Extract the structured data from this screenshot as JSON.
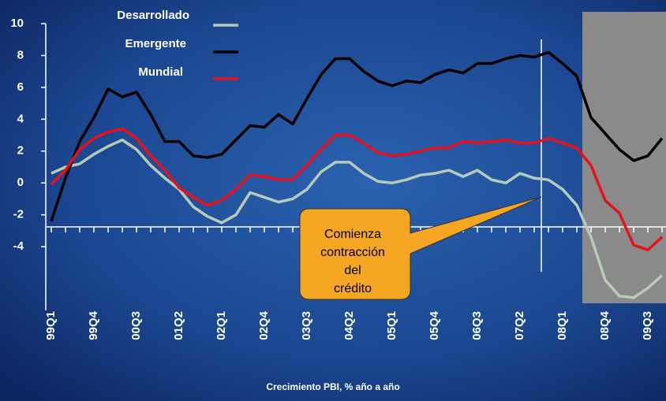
{
  "chart_data": {
    "type": "line",
    "x_label": "Crecimiento PBI, % año a año",
    "categories": [
      "99Q1",
      null,
      null,
      "99Q4",
      null,
      null,
      "00Q3",
      null,
      null,
      "01Q2",
      null,
      null,
      "02Q1",
      null,
      null,
      "02Q4",
      null,
      null,
      "03Q3",
      null,
      null,
      "04Q2",
      null,
      null,
      "05Q1",
      null,
      null,
      "05Q4",
      null,
      null,
      "06Q3",
      null,
      null,
      "07Q2",
      null,
      null,
      "08Q1",
      null,
      null,
      "08Q4",
      null,
      null,
      "09Q3",
      null
    ],
    "series": [
      {
        "name": "Desarrollado",
        "color": "#b8cbb8",
        "values": [
          0.6,
          1.0,
          1.2,
          1.8,
          2.3,
          2.7,
          2.1,
          1.1,
          0.3,
          -0.4,
          -1.5,
          -2.1,
          -2.5,
          -2.0,
          -0.6,
          -0.9,
          -1.2,
          -1.0,
          -0.4,
          0.7,
          1.3,
          1.3,
          0.6,
          0.1,
          0.0,
          0.2,
          0.5,
          0.6,
          0.8,
          0.4,
          0.8,
          0.2,
          0.0,
          0.6,
          0.3,
          0.2,
          -0.4,
          -1.4,
          -3.4,
          -6.1,
          -7.1,
          -7.2,
          -6.6,
          -5.8
        ]
      },
      {
        "name": "Emergente",
        "color": "#000000",
        "values": [
          -2.4,
          0.3,
          2.6,
          4.1,
          5.9,
          5.4,
          5.7,
          4.3,
          2.6,
          2.6,
          1.7,
          1.6,
          1.8,
          2.7,
          3.6,
          3.5,
          4.3,
          3.7,
          5.3,
          6.8,
          7.8,
          7.8,
          7.0,
          6.4,
          6.1,
          6.4,
          6.3,
          6.8,
          7.1,
          6.9,
          7.5,
          7.5,
          7.8,
          8.0,
          7.9,
          8.2,
          7.5,
          6.7,
          4.1,
          3.1,
          2.1,
          1.4,
          1.7,
          2.8
        ]
      },
      {
        "name": "Mundial",
        "color": "#e8101a",
        "values": [
          -0.1,
          0.8,
          2.1,
          2.8,
          3.2,
          3.4,
          2.8,
          1.7,
          0.8,
          -0.3,
          -0.9,
          -1.4,
          -1.1,
          -0.4,
          0.5,
          0.4,
          0.2,
          0.2,
          1.1,
          2.1,
          3.0,
          3.0,
          2.5,
          1.9,
          1.7,
          1.8,
          2.0,
          2.2,
          2.2,
          2.6,
          2.5,
          2.6,
          2.7,
          2.5,
          2.5,
          2.8,
          2.5,
          2.2,
          1.1,
          -1.1,
          -1.9,
          -3.9,
          -4.2,
          -3.4
        ]
      }
    ],
    "ylim": [
      -8,
      10
    ],
    "yticks": [
      10,
      8,
      6,
      4,
      2,
      0,
      -2,
      -4
    ],
    "annotation": [
      "Comienza",
      "contracción",
      "del",
      "crédito"
    ]
  }
}
